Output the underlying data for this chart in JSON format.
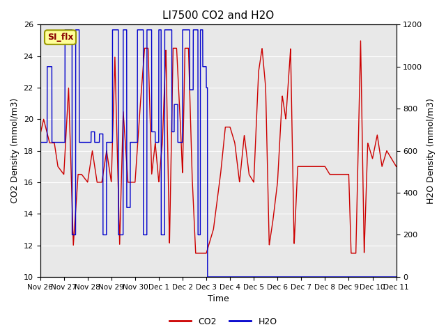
{
  "title": "LI7500 CO2 and H2O",
  "xlabel": "Time",
  "ylabel_left": "CO2 Density (mmol/m3)",
  "ylabel_right": "H2O Density (mmol/m3)",
  "ylim_left": [
    10,
    26
  ],
  "ylim_right": [
    0,
    1200
  ],
  "yticks_left": [
    10,
    12,
    14,
    16,
    18,
    20,
    22,
    24,
    26
  ],
  "yticks_right": [
    0,
    200,
    400,
    600,
    800,
    1000,
    1200
  ],
  "bg_color": "#e8e8e8",
  "annotation_text": "SI_flx",
  "annotation_facecolor": "#ffff99",
  "annotation_edgecolor": "#999900",
  "annotation_textcolor": "#880000",
  "co2_color": "#cc0000",
  "h2o_color": "#0000cc",
  "legend_co2": "CO2",
  "legend_h2o": "H2O",
  "xtick_labels": [
    "Nov 26",
    "Nov 27",
    "Nov 28",
    "Nov 29",
    "Nov 30",
    "Dec 1",
    "Dec 2",
    "Dec 3",
    "Dec 4",
    "Dec 5",
    "Dec 6",
    "Dec 7",
    "Dec 8",
    "Dec 9",
    "Dec 10",
    "Dec 11"
  ],
  "xtick_positions": [
    0,
    1,
    2,
    3,
    4,
    5,
    6,
    7,
    8,
    9,
    10,
    11,
    12,
    13,
    14,
    15
  ],
  "xlim": [
    0,
    15
  ],
  "figsize": [
    6.4,
    4.8
  ],
  "dpi": 100
}
